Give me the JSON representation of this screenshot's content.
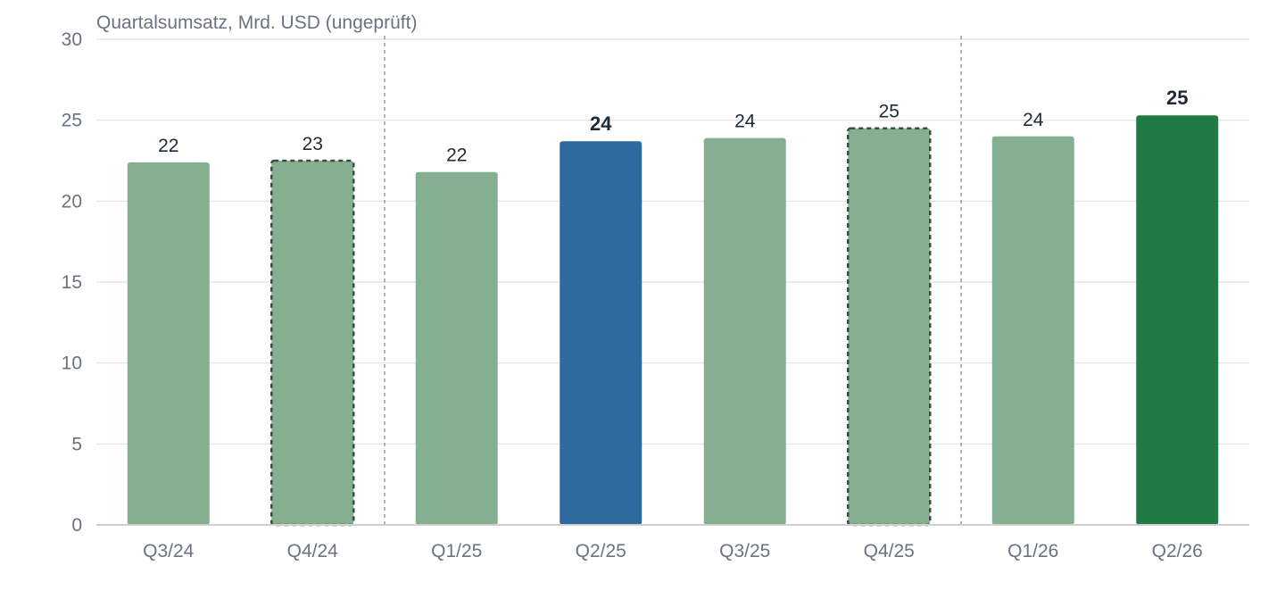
{
  "colors": {
    "normal_bar": "#86af91",
    "highlight_blue": "#2e6a9e",
    "highlight_green": "#217a45",
    "grid": "#e6e6e6",
    "baseline": "#cfcfcf",
    "separator": "#9a9a9a",
    "dashed_outline": "#3d4a45"
  },
  "chart_data": {
    "type": "bar",
    "title": "Quartalsumsatz, Mrd. USD (ungeprüft)",
    "xlabel": "",
    "ylabel": "",
    "ylim": [
      0,
      30
    ],
    "yticks": [
      0,
      5,
      10,
      15,
      20,
      25,
      30
    ],
    "grid": true,
    "categories": [
      "Q3/24",
      "Q4/24",
      "Q1/25",
      "Q2/25",
      "Q3/25",
      "Q4/25",
      "Q1/26",
      "Q2/26"
    ],
    "values": [
      22.4,
      22.5,
      21.8,
      23.7,
      23.9,
      24.5,
      24.0,
      25.3
    ],
    "data_labels": [
      "22",
      "23",
      "22",
      "24",
      "24",
      "25",
      "24",
      "25"
    ],
    "bar_styles": [
      "normal",
      "dashed",
      "normal",
      "highlight_blue",
      "normal",
      "dashed",
      "normal",
      "highlight_green"
    ],
    "bold_labels": [
      false,
      false,
      false,
      true,
      false,
      false,
      false,
      true
    ],
    "separators_after": [
      "Q4/24",
      "Q4/25"
    ]
  }
}
